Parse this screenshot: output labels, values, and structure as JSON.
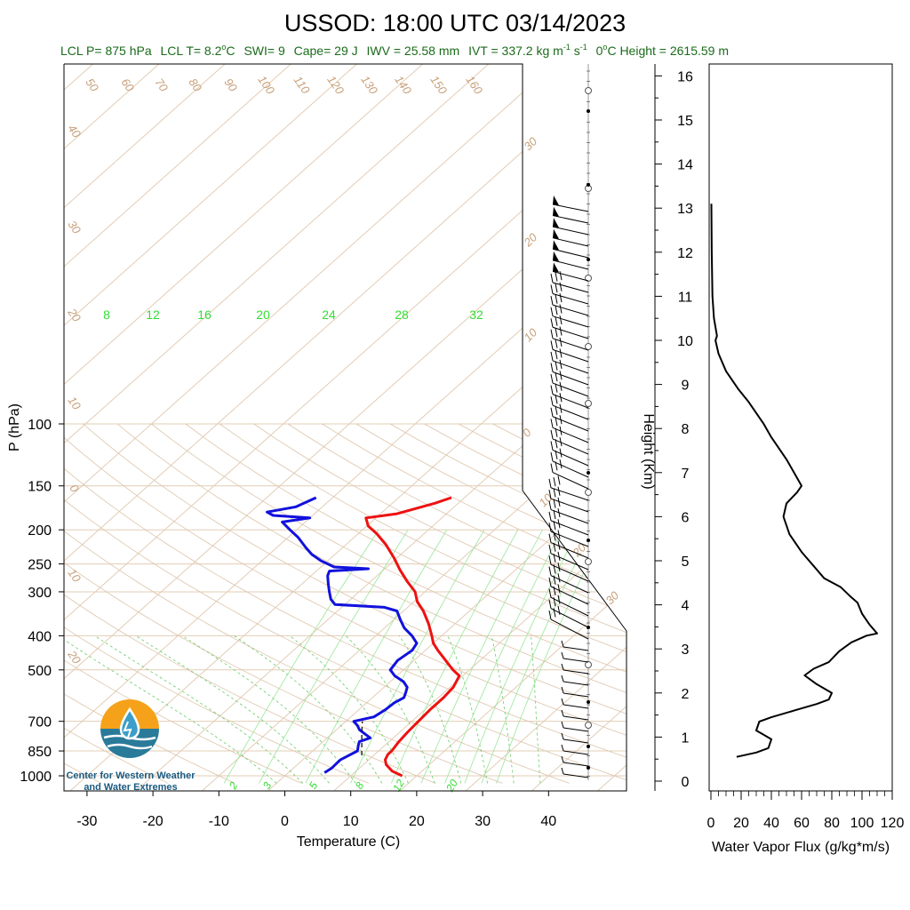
{
  "title": "USSOD: 18:00 UTC 03/14/2023",
  "info": {
    "lcl_p": "LCL P= 875 hPa",
    "lcl_t_pre": "LCL T= 8.2",
    "lcl_t_post": "C",
    "swi": "SWI= 9",
    "cape": "Cape= 29 J",
    "iwv": "IWV = 25.58 mm",
    "ivt_pre": "IVT = 337.2 kg m",
    "ivt_mid": " s",
    "sup_m1": "-1",
    "sup_m1b": "-1",
    "deg": "o",
    "zero_pre": "0",
    "zero_post": "C Height = 2615.59 m"
  },
  "logo": {
    "line1": "Center for Western Weather",
    "line2": "and Water Extremes"
  },
  "chart_data": [
    {
      "type": "line",
      "subtype": "skew-T log-P",
      "xlabel": "Temperature (C)",
      "ylabel": "P (hPa)",
      "x_ticks": [
        "-30",
        "-20",
        "-10",
        "0",
        "10",
        "20",
        "30",
        "40"
      ],
      "y_ticks": [
        "100",
        "150",
        "200",
        "250",
        "300",
        "400",
        "500",
        "700",
        "850",
        "1000"
      ],
      "y_tick_values": [
        100,
        150,
        200,
        250,
        300,
        400,
        500,
        700,
        850,
        1000
      ],
      "xlim": [
        -33,
        45
      ],
      "ylim": [
        1050,
        100
      ],
      "y_scale": "log",
      "isotherm_skew": "45 degrees",
      "mixing_ratio_labels_top": [
        "8",
        "12",
        "16",
        "20",
        "24",
        "28",
        "32"
      ],
      "mixing_ratio_labels_bottom": [
        "2",
        "3",
        "5",
        "8",
        "12",
        "20"
      ],
      "dry_adiabat_labels_top": [
        "50",
        "60",
        "70",
        "80",
        "90",
        "100",
        "110",
        "120",
        "130",
        "140",
        "150",
        "160"
      ],
      "dry_adiabat_labels_left": [
        "40",
        "30",
        "20",
        "10",
        "0",
        "10",
        "20"
      ],
      "moist_adiabat_labels_right": [
        "30",
        "20",
        "10",
        "0",
        "10",
        "20",
        "30"
      ],
      "series": [
        {
          "name": "temperature",
          "color": "#ee1111",
          "points": [
            [
              1000,
              17.8
            ],
            [
              970,
              15.5
            ],
            [
              930,
              13.5
            ],
            [
              900,
              12.5
            ],
            [
              870,
              12.0
            ],
            [
              850,
              12.0
            ],
            [
              800,
              11.5
            ],
            [
              750,
              11.2
            ],
            [
              700,
              11.0
            ],
            [
              650,
              10.8
            ],
            [
              600,
              10.8
            ],
            [
              560,
              10.5
            ],
            [
              520,
              9.5
            ],
            [
              500,
              7.5
            ],
            [
              470,
              4.8
            ],
            [
              440,
              1.9
            ],
            [
              420,
              0.0
            ],
            [
              400,
              -1.5
            ],
            [
              370,
              -4.0
            ],
            [
              340,
              -7.0
            ],
            [
              320,
              -9.5
            ],
            [
              300,
              -11.5
            ],
            [
              280,
              -14.5
            ],
            [
              260,
              -17.5
            ],
            [
              240,
              -20.5
            ],
            [
              220,
              -24.0
            ],
            [
              205,
              -27.2
            ],
            [
              195,
              -29.8
            ],
            [
              185,
              -31.5
            ],
            [
              180,
              -27.5
            ],
            [
              168,
              -23.5
            ],
            [
              162,
              -22.0
            ]
          ]
        },
        {
          "name": "dewpoint",
          "color": "#1111dd",
          "points": [
            [
              980,
              5.5
            ],
            [
              950,
              5.8
            ],
            [
              900,
              5.7
            ],
            [
              850,
              6.8
            ],
            [
              820,
              6.0
            ],
            [
              800,
              5.5
            ],
            [
              780,
              6.5
            ],
            [
              760,
              5.0
            ],
            [
              740,
              3.5
            ],
            [
              720,
              2.5
            ],
            [
              700,
              1.2
            ],
            [
              680,
              3.5
            ],
            [
              650,
              4.0
            ],
            [
              620,
              4.2
            ],
            [
              600,
              4.8
            ],
            [
              580,
              4.2
            ],
            [
              560,
              3.5
            ],
            [
              540,
              2.0
            ],
            [
              520,
              -0.3
            ],
            [
              500,
              -2.0
            ],
            [
              470,
              -2.5
            ],
            [
              440,
              -2.0
            ],
            [
              420,
              -2.5
            ],
            [
              400,
              -4.5
            ],
            [
              380,
              -7.0
            ],
            [
              360,
              -9.0
            ],
            [
              340,
              -11.0
            ],
            [
              332,
              -13.5
            ],
            [
              326,
              -21.5
            ],
            [
              315,
              -23.0
            ],
            [
              300,
              -24.5
            ],
            [
              285,
              -26.0
            ],
            [
              270,
              -27.5
            ],
            [
              262,
              -28.0
            ],
            [
              258,
              -22.5
            ],
            [
              255,
              -28.0
            ],
            [
              245,
              -31.0
            ],
            [
              235,
              -33.5
            ],
            [
              225,
              -35.5
            ],
            [
              210,
              -38.5
            ],
            [
              200,
              -41.0
            ],
            [
              190,
              -43.5
            ],
            [
              185,
              -40.0
            ],
            [
              182,
              -46.0
            ],
            [
              178,
              -47.5
            ],
            [
              172,
              -44.0
            ],
            [
              162,
              -42.5
            ]
          ]
        },
        {
          "name": "parcel",
          "color": "#000000",
          "style": "dashed",
          "points": [
            [
              875,
              8.2
            ],
            [
              750,
              4.2
            ],
            [
              700,
              2.5
            ]
          ]
        }
      ]
    },
    {
      "type": "line",
      "xlabel": "Water Vapor Flux (g/kg*m/s)",
      "ylabel": "Height (Km)",
      "x_ticks": [
        "0",
        "20",
        "40",
        "60",
        "80",
        "100",
        "120"
      ],
      "y_ticks": [
        "0",
        "1",
        "2",
        "3",
        "4",
        "5",
        "6",
        "7",
        "8",
        "9",
        "10",
        "11",
        "12",
        "13",
        "14",
        "15",
        "16"
      ],
      "xlim": [
        0,
        120
      ],
      "ylim": [
        -0.3,
        16.3
      ],
      "series": [
        {
          "name": "water_vapor_flux",
          "color": "#000000",
          "points": [
            [
              17,
              0.55
            ],
            [
              30,
              0.65
            ],
            [
              38,
              0.75
            ],
            [
              40,
              0.95
            ],
            [
              35,
              1.05
            ],
            [
              30,
              1.15
            ],
            [
              32,
              1.35
            ],
            [
              40,
              1.45
            ],
            [
              55,
              1.6
            ],
            [
              70,
              1.75
            ],
            [
              78,
              1.85
            ],
            [
              80,
              2.0
            ],
            [
              70,
              2.2
            ],
            [
              62,
              2.4
            ],
            [
              68,
              2.55
            ],
            [
              78,
              2.7
            ],
            [
              85,
              2.95
            ],
            [
              93,
              3.15
            ],
            [
              103,
              3.3
            ],
            [
              110,
              3.35
            ],
            [
              105,
              3.55
            ],
            [
              100,
              3.8
            ],
            [
              97,
              4.05
            ],
            [
              92,
              4.2
            ],
            [
              86,
              4.4
            ],
            [
              75,
              4.6
            ],
            [
              70,
              4.8
            ],
            [
              60,
              5.2
            ],
            [
              52,
              5.6
            ],
            [
              48,
              6.0
            ],
            [
              50,
              6.3
            ],
            [
              57,
              6.55
            ],
            [
              60,
              6.7
            ],
            [
              50,
              7.3
            ],
            [
              40,
              7.8
            ],
            [
              35,
              8.1
            ],
            [
              25,
              8.6
            ],
            [
              18,
              8.9
            ],
            [
              10,
              9.3
            ],
            [
              5,
              9.7
            ],
            [
              3,
              10.0
            ],
            [
              4,
              10.1
            ],
            [
              2,
              10.5
            ],
            [
              1,
              11.0
            ],
            [
              0.5,
              12.0
            ],
            [
              0.3,
              13.1
            ]
          ]
        }
      ]
    }
  ]
}
